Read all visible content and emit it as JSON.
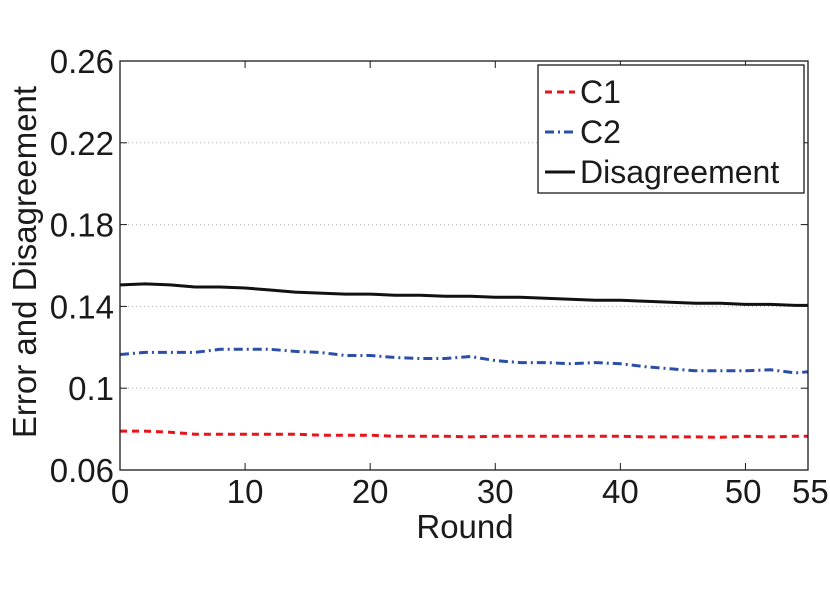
{
  "chart_data": {
    "type": "line",
    "title": "",
    "xlabel": "Round",
    "ylabel": "Error and Disagreement",
    "xlim": [
      0,
      55
    ],
    "ylim": [
      0.06,
      0.26
    ],
    "xticks": [
      0,
      10,
      20,
      30,
      40,
      50,
      55
    ],
    "xtick_labels": [
      "0",
      "10",
      "20",
      "30",
      "40",
      "50",
      "55"
    ],
    "yticks": [
      0.06,
      0.1,
      0.14,
      0.18,
      0.22,
      0.26
    ],
    "ytick_labels": [
      "0.06",
      "0.1",
      "0.14",
      "0.18",
      "0.22",
      "0.26"
    ],
    "grid": "horizontal dotted",
    "legend_position": "top-right",
    "x": [
      0,
      2,
      4,
      6,
      8,
      10,
      12,
      14,
      16,
      18,
      20,
      22,
      24,
      26,
      28,
      30,
      32,
      34,
      36,
      38,
      40,
      42,
      44,
      46,
      48,
      50,
      52,
      54,
      55
    ],
    "series": [
      {
        "name": "C1",
        "color": "#e8141c",
        "dash": "dashed",
        "values": [
          0.079,
          0.079,
          0.0785,
          0.0775,
          0.0775,
          0.0775,
          0.0775,
          0.0775,
          0.077,
          0.077,
          0.077,
          0.0765,
          0.0765,
          0.0765,
          0.0762,
          0.0765,
          0.0765,
          0.0765,
          0.0765,
          0.0765,
          0.0765,
          0.0762,
          0.0762,
          0.0762,
          0.076,
          0.0765,
          0.0762,
          0.0765,
          0.0765
        ]
      },
      {
        "name": "C2",
        "color": "#2b4ea8",
        "dash": "dash-dot",
        "values": [
          0.1165,
          0.1175,
          0.1175,
          0.1175,
          0.119,
          0.119,
          0.119,
          0.118,
          0.1175,
          0.116,
          0.116,
          0.115,
          0.1145,
          0.1145,
          0.1155,
          0.1135,
          0.1125,
          0.1125,
          0.112,
          0.1125,
          0.112,
          0.1105,
          0.1095,
          0.1085,
          0.1085,
          0.1085,
          0.109,
          0.1075,
          0.108
        ]
      },
      {
        "name": "Disagreement",
        "color": "#111111",
        "dash": "solid",
        "values": [
          0.1505,
          0.151,
          0.1505,
          0.1495,
          0.1495,
          0.149,
          0.148,
          0.147,
          0.1465,
          0.146,
          0.146,
          0.1455,
          0.1455,
          0.145,
          0.145,
          0.1445,
          0.1445,
          0.144,
          0.1435,
          0.143,
          0.143,
          0.1425,
          0.142,
          0.1415,
          0.1415,
          0.141,
          0.141,
          0.1405,
          0.1405
        ]
      }
    ]
  }
}
